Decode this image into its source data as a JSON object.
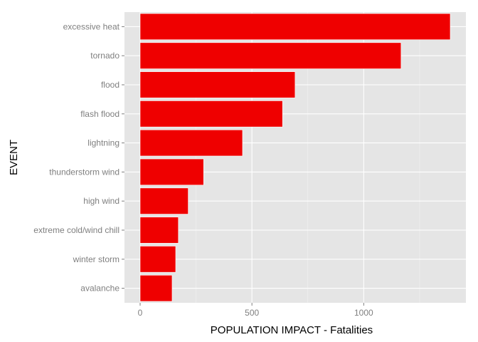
{
  "chart_data": {
    "type": "bar",
    "orientation": "horizontal",
    "categories": [
      "excessive heat",
      "tornado",
      "flood",
      "flash flood",
      "lightning",
      "thunderstorm wind",
      "high wind",
      "extreme cold/wind chill",
      "winter storm",
      "avalanche"
    ],
    "values": [
      1387,
      1167,
      693,
      637,
      458,
      284,
      215,
      171,
      159,
      143
    ],
    "xlabel": "POPULATION IMPACT - Fatalities",
    "ylabel": "EVENT",
    "xlim": [
      -70,
      1457
    ],
    "xticks": [
      0,
      500,
      1000
    ],
    "xtick_labels": [
      "0",
      "500",
      "1000"
    ],
    "grid": true,
    "legend": "none",
    "colors": {
      "bar": "#ef0000",
      "panel": "#e5e5e5",
      "grid": "#ffffff"
    }
  }
}
